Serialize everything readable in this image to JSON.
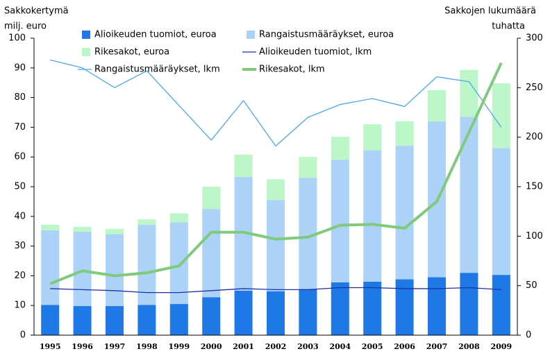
{
  "chart_data": {
    "type": "bar",
    "y_label": [
      "Sakkokertymä",
      "milj. euro"
    ],
    "y2_label": [
      "Sakkojen lukumäärä",
      "tuhatta"
    ],
    "categories": [
      "1995",
      "1996",
      "1997",
      "1998",
      "1999",
      "2000",
      "2001",
      "2002",
      "2003",
      "2004",
      "2005",
      "2006",
      "2007",
      "2008",
      "2009"
    ],
    "ylim": [
      0,
      100
    ],
    "yticks": [
      0,
      10,
      20,
      30,
      40,
      50,
      60,
      70,
      80,
      90,
      100
    ],
    "y2lim": [
      0,
      300
    ],
    "y2ticks": [
      0,
      50,
      100,
      150,
      200,
      250,
      300
    ],
    "stacked": true,
    "grid": false,
    "series": [
      {
        "name": "Alioikeuden tuomiot, euroa",
        "type": "bar",
        "color": "#1e78e6",
        "values": [
          10.2,
          9.8,
          9.8,
          10.2,
          10.5,
          12.8,
          15,
          14.8,
          15.5,
          17.8,
          18,
          18.8,
          19.5,
          21,
          20.3
        ]
      },
      {
        "name": "Rangaistusmääräykset, euroa",
        "type": "bar",
        "color": "#acd3f7",
        "values": [
          25.1,
          25,
          24.2,
          27,
          27.5,
          29.7,
          38.3,
          30.7,
          37.5,
          41.2,
          44.3,
          45,
          52.5,
          52.5,
          42.7
        ]
      },
      {
        "name": "Rikesakot, euroa",
        "type": "bar",
        "color": "#bdf6c8",
        "values": [
          1.9,
          1.7,
          1.8,
          1.8,
          3,
          7.5,
          7.5,
          7,
          7,
          7.8,
          8.7,
          8.2,
          10.5,
          15.8,
          21.8
        ]
      },
      {
        "name": "Alioikeuden tuomiot, lkm",
        "type": "line",
        "axis": "y2",
        "color": "#1f2fa8",
        "width": 1.3,
        "values": [
          47,
          46,
          45,
          43,
          43,
          45,
          47,
          46,
          46,
          48,
          48,
          47,
          47,
          48,
          46
        ]
      },
      {
        "name": "Rangaistusmääräykset, lkm",
        "type": "line",
        "axis": "y2",
        "color": "#4aa8f0",
        "width": 1.3,
        "values": [
          278,
          270,
          250,
          267,
          232,
          197,
          237,
          191,
          220,
          233,
          239,
          231,
          261,
          256,
          210
        ]
      },
      {
        "name": "Rikesakot, lkm",
        "type": "line",
        "axis": "y2",
        "color": "#7fca7c",
        "width": 4,
        "values": [
          52,
          65,
          60,
          63,
          70,
          104,
          104,
          97,
          99,
          111,
          112,
          108,
          135,
          205,
          275
        ]
      }
    ]
  }
}
